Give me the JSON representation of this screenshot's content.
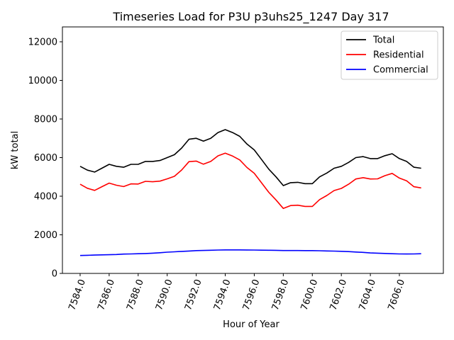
{
  "chart_data": {
    "type": "line",
    "title": "Timeseries Load for P3U p3uhs25_1247  Day 317",
    "xlabel": "Hour of Year",
    "ylabel": "kW total",
    "xlim": [
      7582.78,
      7609.03
    ],
    "ylim": [
      0,
      12770
    ],
    "xticks": [
      "7584.0",
      "7586.0",
      "7588.0",
      "7590.0",
      "7592.0",
      "7594.0",
      "7596.0",
      "7598.0",
      "7600.0",
      "7602.0",
      "7604.0",
      "7606.0"
    ],
    "yticks": [
      "0",
      "2000",
      "4000",
      "6000",
      "8000",
      "10000",
      "12000"
    ],
    "grid": false,
    "legend_placement": "top-right",
    "x": [
      7584,
      7584.5,
      7585,
      7585.5,
      7586,
      7586.5,
      7587,
      7587.5,
      7588,
      7588.5,
      7589,
      7589.5,
      7590,
      7590.5,
      7591,
      7591.5,
      7592,
      7592.5,
      7593,
      7593.5,
      7594,
      7594.5,
      7595,
      7595.5,
      7596,
      7596.5,
      7597,
      7597.5,
      7598,
      7598.5,
      7599,
      7599.5,
      7600,
      7600.5,
      7601,
      7601.5,
      7602,
      7602.5,
      7603,
      7603.5,
      7604,
      7604.5,
      7605,
      7605.5,
      7606,
      7606.5,
      7607,
      7607.5
    ],
    "series": [
      {
        "name": "Total",
        "color": "#000000",
        "values": [
          5550,
          5350,
          5250,
          5450,
          5650,
          5550,
          5500,
          5650,
          5650,
          5800,
          5800,
          5850,
          6000,
          6150,
          6500,
          6950,
          7000,
          6850,
          7000,
          7300,
          7450,
          7300,
          7100,
          6700,
          6400,
          5900,
          5400,
          5000,
          4550,
          4700,
          4720,
          4650,
          4650,
          5000,
          5200,
          5450,
          5550,
          5750,
          6000,
          6050,
          5950,
          5950,
          6100,
          6200,
          5950,
          5800,
          5500,
          5450
        ]
      },
      {
        "name": "Residential",
        "color": "#ff0000",
        "values": [
          4620,
          4410,
          4300,
          4490,
          4680,
          4570,
          4500,
          4640,
          4630,
          4770,
          4750,
          4780,
          4900,
          5030,
          5360,
          5790,
          5820,
          5660,
          5800,
          6090,
          6230,
          6080,
          5880,
          5485,
          5190,
          4695,
          4200,
          3805,
          3365,
          3515,
          3535,
          3470,
          3470,
          3825,
          4035,
          4295,
          4405,
          4620,
          4890,
          4960,
          4890,
          4900,
          5065,
          5180,
          4940,
          4795,
          4490,
          4430
        ]
      },
      {
        "name": "Commercial",
        "color": "#0000ff",
        "values": [
          930,
          940,
          950,
          960,
          970,
          980,
          1000,
          1010,
          1020,
          1030,
          1050,
          1070,
          1100,
          1120,
          1140,
          1160,
          1180,
          1190,
          1200,
          1210,
          1220,
          1220,
          1220,
          1215,
          1210,
          1205,
          1200,
          1195,
          1185,
          1185,
          1185,
          1180,
          1180,
          1175,
          1165,
          1155,
          1145,
          1130,
          1110,
          1090,
          1060,
          1050,
          1035,
          1020,
          1010,
          1005,
          1010,
          1020
        ]
      }
    ]
  }
}
